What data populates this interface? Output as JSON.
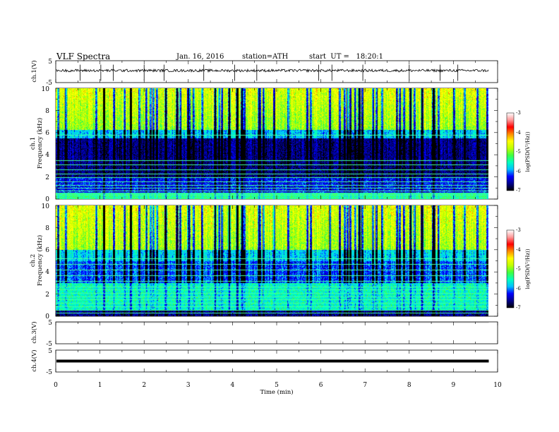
{
  "header": {
    "title": "VLF Spectra",
    "date": "Jan. 16, 2016",
    "station": "station=ATH",
    "start": "start  UT =   18:20:1"
  },
  "chart_data": [
    {
      "type": "line",
      "panel": "ch1-waveform",
      "ylabel": "ch.1(V)",
      "ylim": [
        -5,
        5
      ],
      "yticks": [
        "5",
        "-5"
      ],
      "baseline_v": 0.5,
      "spike_times_min": [
        0.55,
        1.02,
        1.3,
        2.0,
        2.45,
        3.35,
        4.05,
        4.55,
        5.95,
        6.25,
        6.95,
        8.0,
        8.7,
        9.1
      ]
    },
    {
      "type": "heatmap",
      "panel": "ch1-spectrogram",
      "ylabel": "Frequency (kHz)",
      "chlabel": "ch.1",
      "ylim": [
        0,
        10
      ],
      "yticks": [
        "0",
        "2",
        "4",
        "6",
        "8",
        "10"
      ],
      "colorbar": {
        "label": "log(PSD(V²/Hz))",
        "range": [
          -7,
          -3
        ],
        "ticks": [
          "-7",
          "-6",
          "-5",
          "-4",
          "-3"
        ]
      },
      "hlines_khz": [
        0.15,
        0.3,
        0.45,
        0.6,
        0.75,
        1.0,
        1.3,
        1.6,
        2.0,
        2.3,
        2.7,
        3.1,
        3.5,
        5.8
      ]
    },
    {
      "type": "heatmap",
      "panel": "ch2-spectrogram",
      "ylabel": "Frequency (kHz)",
      "chlabel": "ch.2",
      "ylim": [
        0,
        10
      ],
      "yticks": [
        "0",
        "2",
        "4",
        "6",
        "8",
        "10"
      ],
      "colorbar": {
        "label": "log(PSD(V²/Hz))",
        "range": [
          -7,
          -3
        ],
        "ticks": [
          "-7",
          "-6",
          "-5",
          "-4",
          "-3"
        ]
      },
      "hlines_khz": [
        0.3,
        0.6,
        0.9,
        1.2,
        1.5,
        1.8,
        2.1,
        2.4,
        2.7,
        3.2,
        3.7,
        4.2,
        4.7,
        5.2
      ]
    },
    {
      "type": "line",
      "panel": "ch3-waveform",
      "ylabel": "ch.3(V)",
      "ylim": [
        -5,
        5
      ],
      "yticks": [
        "5",
        "-5"
      ],
      "baseline_v": 4.8
    },
    {
      "type": "line",
      "panel": "ch4-waveform",
      "ylabel": "ch.4(V)",
      "ylim": [
        -5,
        5
      ],
      "yticks": [
        "5",
        "-5"
      ],
      "baseline_v": 0
    }
  ],
  "xaxis": {
    "label": "Time (min)",
    "range": [
      0,
      10
    ],
    "ticks": [
      "0",
      "1",
      "2",
      "3",
      "4",
      "5",
      "6",
      "7",
      "8",
      "9",
      "10"
    ],
    "data_end_min": 9.8
  },
  "colormap": [
    "#000000",
    "#00008b",
    "#0000ff",
    "#00bfff",
    "#00ffc0",
    "#40ff40",
    "#c0ff00",
    "#ffff00",
    "#ff8c00",
    "#ff0000",
    "#ff9999",
    "#ffffff"
  ]
}
